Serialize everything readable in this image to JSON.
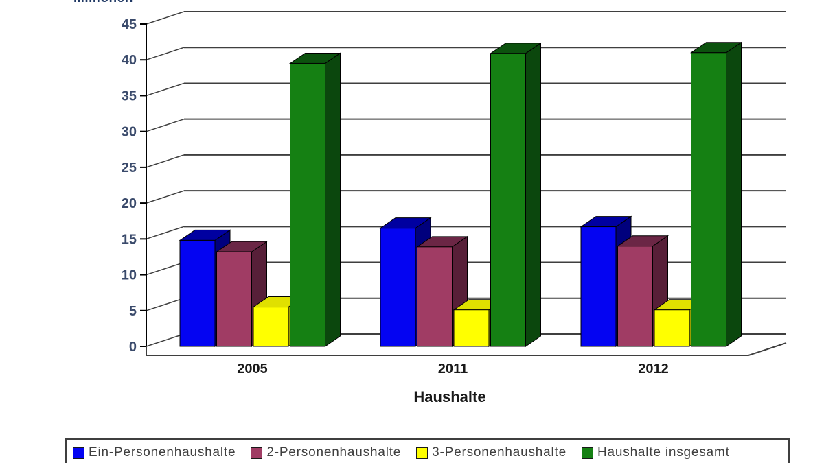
{
  "unit_label": "Millionen",
  "chart_data": {
    "type": "bar",
    "style": "3d-clustered-column",
    "title": "",
    "xlabel": "Haushalte",
    "ylabel": "Millionen",
    "categories": [
      "2005",
      "2011",
      "2012"
    ],
    "series": [
      {
        "name": "Ein-Personenhaushalte",
        "values": [
          14.8,
          16.5,
          16.7
        ],
        "color": "#0404f2",
        "color_top": "#0000a0",
        "color_side": "#00007d"
      },
      {
        "name": "2-Personenhaushalte",
        "values": [
          13.2,
          13.9,
          14.0
        ],
        "color": "#a03c64",
        "color_top": "#6b2645",
        "color_side": "#571f38"
      },
      {
        "name": "3-Personenhaushalte",
        "values": [
          5.5,
          5.1,
          5.1
        ],
        "color": "#ffff00",
        "color_top": "#e0e000",
        "color_side": "#9c9c00"
      },
      {
        "name": "Haushalte insgesamt",
        "values": [
          39.5,
          40.9,
          41.0
        ],
        "color": "#158013",
        "color_top": "#0c520e",
        "color_side": "#0b470d"
      }
    ],
    "ylim": [
      0,
      45
    ],
    "yticks": [
      0,
      5,
      10,
      15,
      20,
      25,
      30,
      35,
      40,
      45
    ],
    "grid": true,
    "legend_position": "bottom"
  },
  "axes": {
    "y_tick_labels": [
      "0",
      "5",
      "10",
      "15",
      "20",
      "25",
      "30",
      "35",
      "40",
      "45"
    ],
    "x_category_labels": [
      "2005",
      "2011",
      "2012"
    ],
    "x_axis_title": "Haushalte"
  },
  "legend": {
    "items": [
      "Ein-Personenhaushalte",
      "2-Personenhaushalte",
      "3-Personenhaushalte",
      "Haushalte insgesamt"
    ]
  },
  "colors": {
    "grid": "#3f3f3f",
    "axis": "#000000",
    "tick_label": "#3a4a6b",
    "category_label": "#1a1a1a",
    "legend_text": "#3f3f3f",
    "legend_border": "#404040",
    "background": "#ffffff"
  }
}
